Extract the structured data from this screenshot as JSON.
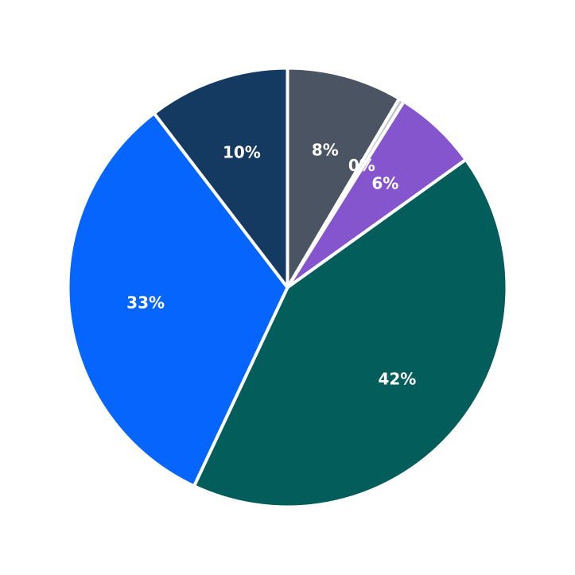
{
  "chart_data": {
    "type": "pie",
    "title": "",
    "start_angle_deg": 90,
    "direction": "clockwise",
    "slices": [
      {
        "value": 8.5,
        "label": "8%",
        "color": "#4a5462"
      },
      {
        "value": 0.4,
        "label": "0%",
        "color": "#c0c4ca"
      },
      {
        "value": 6.2,
        "label": "6%",
        "color": "#8455cc"
      },
      {
        "value": 41.9,
        "label": "42%",
        "color": "#025d5b"
      },
      {
        "value": 32.6,
        "label": "33%",
        "color": "#0565fd"
      },
      {
        "value": 10.4,
        "label": "10%",
        "color": "#153a62"
      }
    ]
  }
}
